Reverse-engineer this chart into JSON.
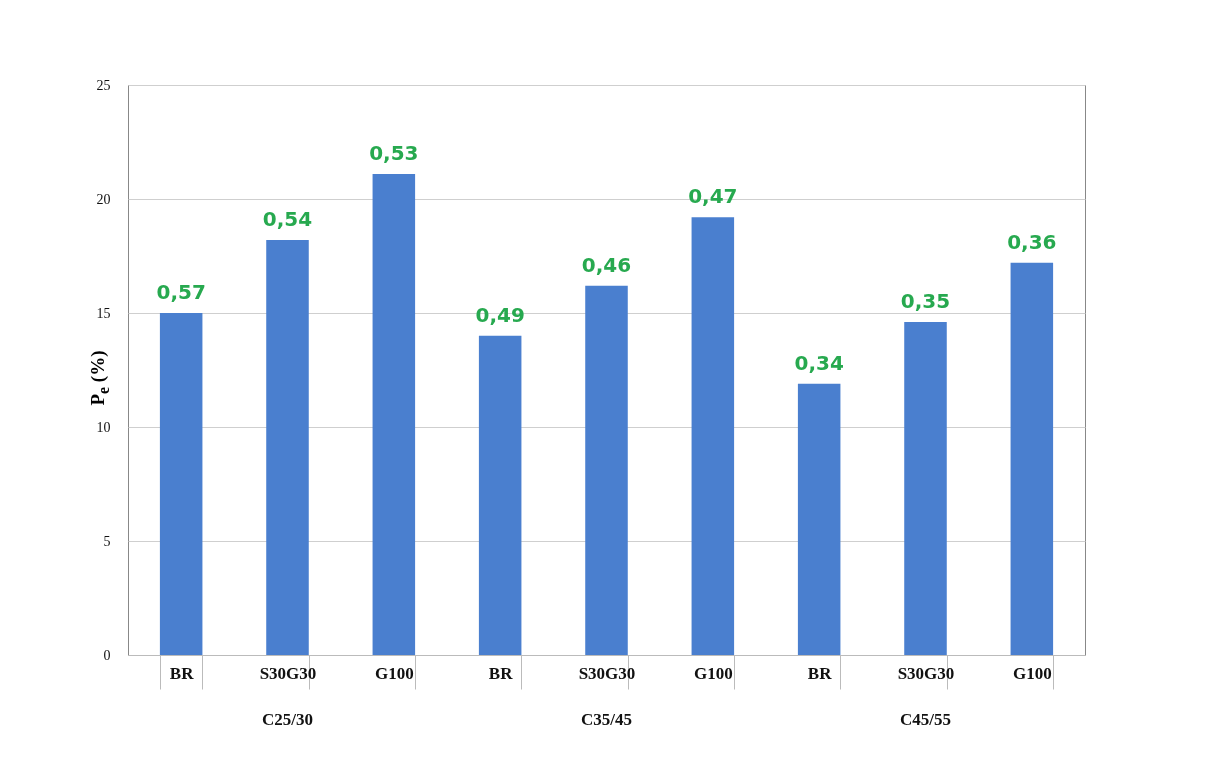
{
  "chart_data": {
    "type": "bar",
    "ylabel": "P$_{e}$ (%)",
    "categories": [
      "BR",
      "S30G30",
      "G100",
      "BR",
      "S30G30",
      "G100",
      "BR",
      "S30G30",
      "G100"
    ],
    "values": [
      15,
      18.2,
      21.1,
      14,
      16.2,
      19.2,
      11.9,
      14.6,
      17.2
    ],
    "color": "#4a7fcf",
    "annotations": [
      "0,57",
      "0,54",
      "0,53",
      "0,49",
      "0,46",
      "0,47",
      "0,34",
      "0,35",
      "0,36",
      "C25/30",
      "C35/45",
      "C45/55"
    ],
    "ylim": [
      0,
      25
    ],
    "yticks": [
      0,
      5,
      10,
      15,
      20,
      25
    ],
    "grid": "y"
  }
}
